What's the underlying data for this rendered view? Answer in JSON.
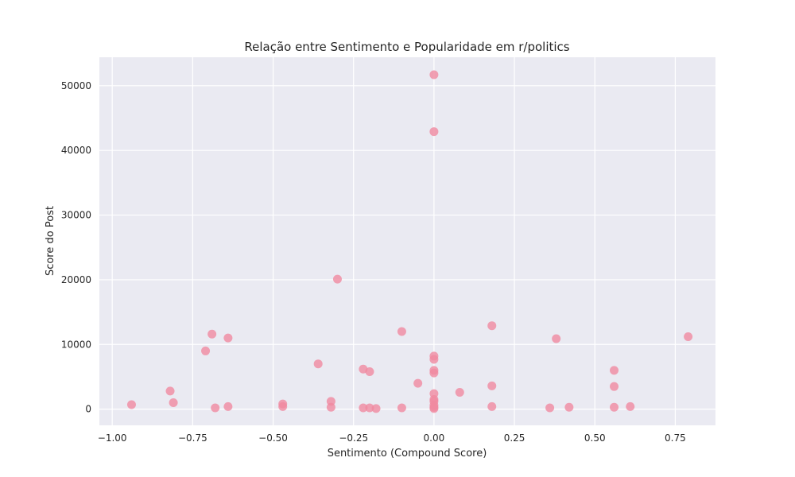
{
  "chart_data": {
    "type": "scatter",
    "title": "Relação entre Sentimento e Popularidade em r/politics",
    "xlabel": "Sentimento (Compound Score)",
    "ylabel": "Score do Post",
    "xlim": [
      -1.04,
      0.875
    ],
    "ylim": [
      -2500,
      54400
    ],
    "xticks": [
      -1.0,
      -0.75,
      -0.5,
      -0.25,
      0.0,
      0.25,
      0.5,
      0.75
    ],
    "xtick_labels": [
      "−1.00",
      "−0.75",
      "−0.50",
      "−0.25",
      "0.00",
      "0.25",
      "0.50",
      "0.75"
    ],
    "yticks": [
      0,
      10000,
      20000,
      30000,
      40000,
      50000
    ],
    "ytick_labels": [
      "0",
      "10000",
      "20000",
      "30000",
      "40000",
      "50000"
    ],
    "grid": true,
    "legend": "none",
    "point_color": "#f08aa0",
    "background_color": "#eaeaf2",
    "series": [
      {
        "points": [
          [
            -0.94,
            700
          ],
          [
            -0.82,
            2800
          ],
          [
            -0.81,
            1000
          ],
          [
            -0.71,
            9000
          ],
          [
            -0.69,
            11600
          ],
          [
            -0.68,
            200
          ],
          [
            -0.64,
            11000
          ],
          [
            -0.64,
            400
          ],
          [
            -0.47,
            800
          ],
          [
            -0.47,
            400
          ],
          [
            -0.36,
            7000
          ],
          [
            -0.32,
            1200
          ],
          [
            -0.32,
            300
          ],
          [
            -0.3,
            20100
          ],
          [
            -0.22,
            6200
          ],
          [
            -0.22,
            200
          ],
          [
            -0.2,
            5800
          ],
          [
            -0.2,
            200
          ],
          [
            -0.18,
            100
          ],
          [
            -0.1,
            12000
          ],
          [
            -0.1,
            200
          ],
          [
            -0.05,
            4000
          ],
          [
            0.0,
            51700
          ],
          [
            0.0,
            42900
          ],
          [
            0.0,
            8200
          ],
          [
            0.0,
            7700
          ],
          [
            0.0,
            6000
          ],
          [
            0.0,
            5600
          ],
          [
            0.0,
            2400
          ],
          [
            0.0,
            1500
          ],
          [
            0.0,
            1200
          ],
          [
            0.0,
            600
          ],
          [
            0.0,
            300
          ],
          [
            0.0,
            100
          ],
          [
            0.08,
            2600
          ],
          [
            0.18,
            12900
          ],
          [
            0.18,
            3600
          ],
          [
            0.18,
            400
          ],
          [
            0.36,
            200
          ],
          [
            0.38,
            10900
          ],
          [
            0.42,
            300
          ],
          [
            0.56,
            6000
          ],
          [
            0.56,
            3500
          ],
          [
            0.56,
            300
          ],
          [
            0.61,
            400
          ],
          [
            0.79,
            11200
          ]
        ]
      }
    ]
  }
}
